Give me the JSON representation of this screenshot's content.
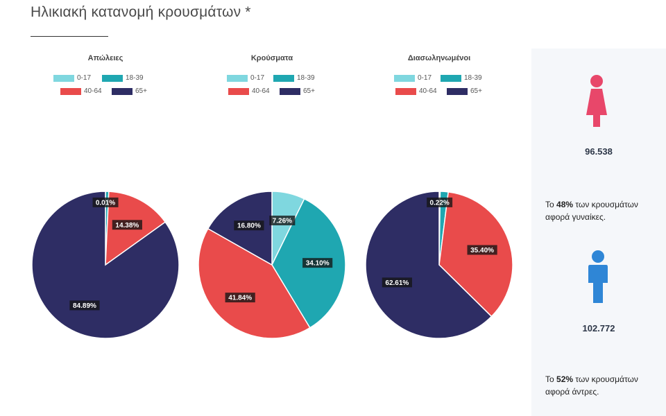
{
  "page": {
    "title": "Ηλικιακή κατανομή κρουσμάτων *"
  },
  "colors": {
    "age_0_17": "#7fd7df",
    "age_18_39": "#1fa7b1",
    "age_40_64": "#e94b4b",
    "age_65_plus": "#2e2d64",
    "female": "#e8476a",
    "male": "#2f86d6"
  },
  "legend": [
    "0-17",
    "18-39",
    "40-64",
    "65+"
  ],
  "chart_data": [
    {
      "type": "pie",
      "title": "Απώλειες",
      "categories": [
        "0-17",
        "18-39",
        "40-64",
        "65+"
      ],
      "values": [
        0.01,
        0.72,
        14.38,
        84.89
      ],
      "labels": [
        "0.01%",
        "",
        "14.38%",
        "84.89%"
      ]
    },
    {
      "type": "pie",
      "title": "Κρούσματα",
      "categories": [
        "0-17",
        "18-39",
        "40-64",
        "65+"
      ],
      "values": [
        7.26,
        34.1,
        41.84,
        16.8
      ],
      "labels": [
        "7.26%",
        "34.10%",
        "41.84%",
        "16.80%"
      ]
    },
    {
      "type": "pie",
      "title": "Διασωληνωμένοι",
      "categories": [
        "0-17",
        "18-39",
        "40-64",
        "65+"
      ],
      "values": [
        0.22,
        1.77,
        35.4,
        62.61
      ],
      "labels": [
        "0.22%",
        "",
        "35.40%",
        "62.61%"
      ]
    }
  ],
  "side_panel": {
    "women": {
      "count": "96.538",
      "text_before": "Το ",
      "percent": "48%",
      "text_after": " των κρουσμάτων αφορά γυναίκες."
    },
    "men": {
      "count": "102.772",
      "text_before": "Το ",
      "percent": "52%",
      "text_after": " των κρουσμάτων αφορά άντρες."
    }
  }
}
